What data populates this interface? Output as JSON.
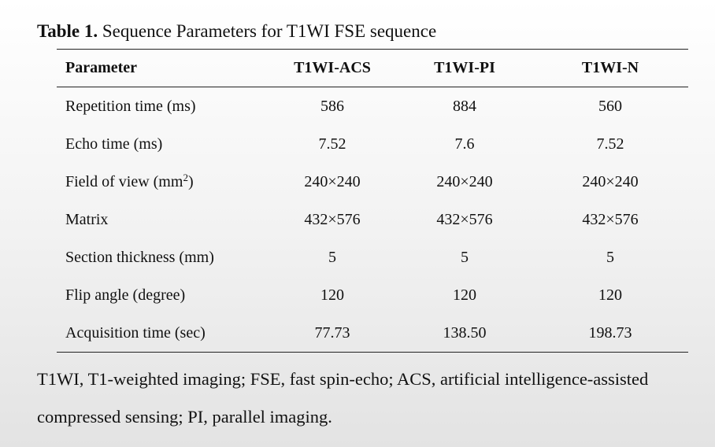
{
  "caption": {
    "label": "Table 1.",
    "text": " Sequence Parameters for T1WI FSE sequence"
  },
  "table": {
    "headers": [
      "Parameter",
      "T1WI-ACS",
      "T1WI-PI",
      "T1WI-N"
    ],
    "rows": [
      {
        "param": "Repetition time (ms)",
        "sup": "",
        "param_suffix": "",
        "values": [
          "586",
          "884",
          "560"
        ]
      },
      {
        "param": "Echo time (ms)",
        "sup": "",
        "param_suffix": "",
        "values": [
          "7.52",
          "7.6",
          "7.52"
        ]
      },
      {
        "param": "Field of view (mm",
        "sup": "2",
        "param_suffix": ")",
        "values": [
          "240×240",
          "240×240",
          "240×240"
        ]
      },
      {
        "param": "Matrix",
        "sup": "",
        "param_suffix": "",
        "values": [
          "432×576",
          "432×576",
          "432×576"
        ]
      },
      {
        "param": "Section thickness (mm)",
        "sup": "",
        "param_suffix": "",
        "values": [
          "5",
          "5",
          "5"
        ]
      },
      {
        "param": "Flip angle (degree)",
        "sup": "",
        "param_suffix": "",
        "values": [
          "120",
          "120",
          "120"
        ]
      },
      {
        "param": "Acquisition time (sec)",
        "sup": "",
        "param_suffix": "",
        "values": [
          "77.73",
          "138.50",
          "198.73"
        ]
      }
    ]
  },
  "footnote": {
    "line1": "T1WI, T1-weighted imaging; FSE, fast spin-echo; ACS, artificial intelligence-assisted",
    "line2": "compressed sensing; PI, parallel imaging."
  }
}
